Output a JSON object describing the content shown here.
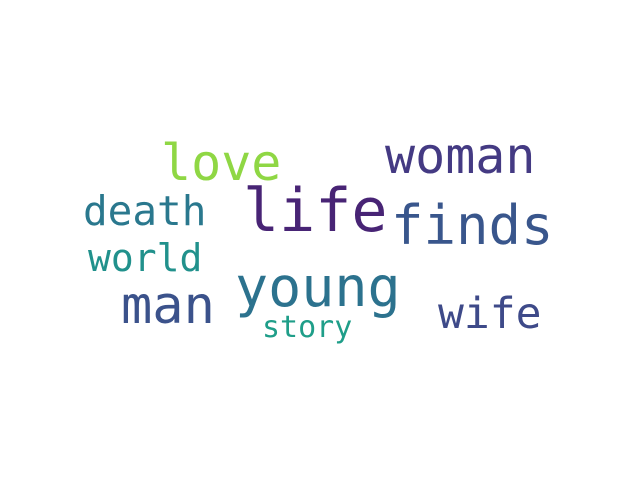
{
  "words": [
    {
      "text": "love",
      "color": "#8fd744"
    },
    {
      "text": "woman",
      "color": "#443a83"
    },
    {
      "text": "death",
      "color": "#2a788e"
    },
    {
      "text": "life",
      "color": "#482475"
    },
    {
      "text": "finds",
      "color": "#39568c"
    },
    {
      "text": "world",
      "color": "#21918c"
    },
    {
      "text": "young",
      "color": "#2c728e"
    },
    {
      "text": "man",
      "color": "#3b528b"
    },
    {
      "text": "wife",
      "color": "#3e4a89"
    },
    {
      "text": "story",
      "color": "#1f9e89"
    }
  ]
}
